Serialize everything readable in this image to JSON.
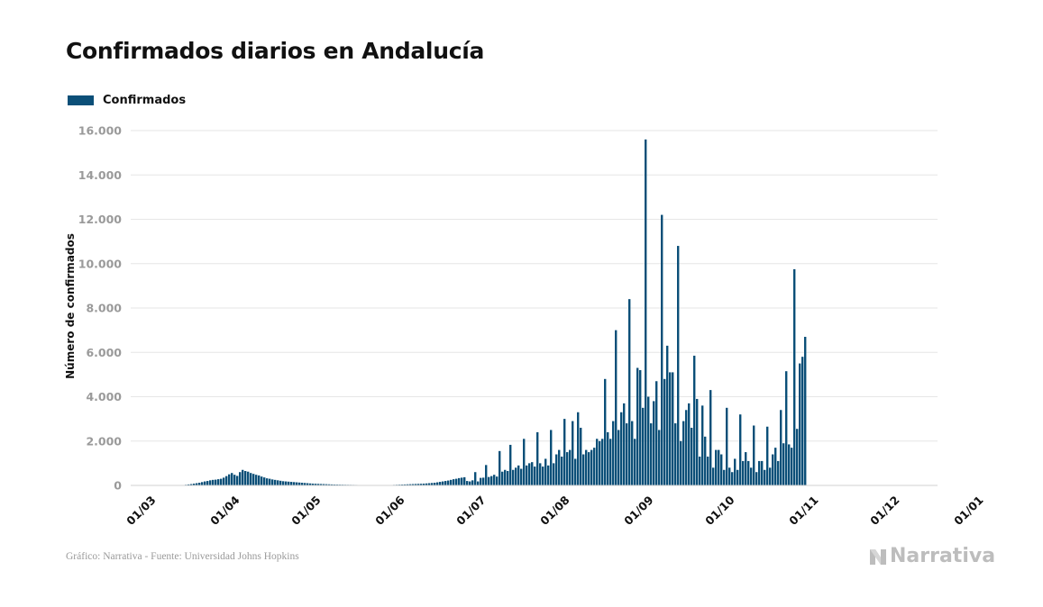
{
  "title": "Confirmados diarios en Andalucía",
  "footer": "Gráfico: Narrativa - Fuente: Universidad Johns Hopkins",
  "brand": "Narrativa",
  "colors": {
    "bar": "#0b4f78",
    "grid": "#e6e6e6",
    "tick": "#9a9a9a"
  },
  "chart_data": {
    "type": "bar",
    "title": "Confirmados diarios en Andalucía",
    "ylabel": "Número de confirmados",
    "xlabel": "",
    "ylim": [
      0,
      16000
    ],
    "yticks": [
      0,
      2000,
      4000,
      6000,
      8000,
      10000,
      12000,
      14000,
      16000
    ],
    "ytick_labels": [
      "0",
      "2.000",
      "4.000",
      "6.000",
      "8.000",
      "10.000",
      "12.000",
      "14.000",
      "16.000"
    ],
    "grid": true,
    "legend": {
      "position": "top-left"
    },
    "x_start_date": "2020-02-24",
    "x_tick_labels": [
      {
        "date": "2020-03-01",
        "label": "01/03"
      },
      {
        "date": "2020-04-01",
        "label": "01/04"
      },
      {
        "date": "2020-05-01",
        "label": "01/05"
      },
      {
        "date": "2020-06-01",
        "label": "01/06"
      },
      {
        "date": "2020-07-01",
        "label": "01/07"
      },
      {
        "date": "2020-08-01",
        "label": "01/08"
      },
      {
        "date": "2020-09-01",
        "label": "01/09"
      },
      {
        "date": "2020-10-01",
        "label": "01/10"
      },
      {
        "date": "2020-11-01",
        "label": "01/11"
      },
      {
        "date": "2020-12-01",
        "label": "01/12"
      },
      {
        "date": "2021-01-01",
        "label": "01/01"
      }
    ],
    "series": [
      {
        "name": "Confirmados",
        "values": [
          0,
          0,
          0,
          0,
          0,
          0,
          0,
          0,
          0,
          0,
          0,
          0,
          0,
          0,
          0,
          5,
          10,
          15,
          20,
          30,
          45,
          60,
          80,
          100,
          120,
          150,
          180,
          200,
          230,
          250,
          260,
          280,
          300,
          350,
          420,
          500,
          560,
          480,
          430,
          600,
          700,
          650,
          620,
          560,
          520,
          480,
          450,
          400,
          360,
          320,
          300,
          270,
          250,
          230,
          210,
          190,
          180,
          170,
          160,
          150,
          140,
          130,
          120,
          110,
          100,
          90,
          80,
          75,
          70,
          65,
          60,
          55,
          50,
          45,
          40,
          38,
          35,
          33,
          30,
          28,
          26,
          24,
          22,
          20,
          18,
          16,
          15,
          14,
          13,
          12,
          11,
          10,
          10,
          12,
          15,
          20,
          25,
          30,
          35,
          40,
          45,
          50,
          55,
          60,
          65,
          70,
          75,
          80,
          90,
          100,
          110,
          120,
          140,
          160,
          180,
          200,
          220,
          250,
          280,
          300,
          330,
          350,
          370,
          200,
          180,
          230,
          600,
          180,
          340,
          350,
          920,
          380,
          420,
          480,
          400,
          1550,
          620,
          700,
          650,
          1830,
          700,
          800,
          900,
          750,
          2100,
          900,
          1000,
          1050,
          850,
          2400,
          1000,
          850,
          1200,
          900,
          2500,
          1000,
          1400,
          1600,
          1300,
          3000,
          1500,
          1600,
          2900,
          1200,
          3300,
          2600,
          1400,
          1600,
          1500,
          1600,
          1700,
          2100,
          2000,
          2100,
          4800,
          2400,
          2100,
          2900,
          7000,
          2500,
          3300,
          3700,
          2800,
          8400,
          2900,
          2100,
          5300,
          5200,
          3500,
          15600,
          4000,
          2800,
          3800,
          4700,
          2500,
          12200,
          4800,
          6300,
          5100,
          5100,
          2800,
          10800,
          2000,
          2900,
          3400,
          3700,
          2600,
          5850,
          3900,
          1300,
          3600,
          2200,
          1300,
          4300,
          800,
          1600,
          1600,
          1400,
          700,
          3500,
          800,
          600,
          1200,
          700,
          3200,
          1100,
          1500,
          1100,
          800,
          2700,
          600,
          1100,
          1100,
          700,
          2650,
          800,
          1400,
          1700,
          1100,
          3400,
          1900,
          5150,
          1850,
          1700,
          9750,
          2550,
          5500,
          5800,
          6700
        ]
      }
    ]
  }
}
